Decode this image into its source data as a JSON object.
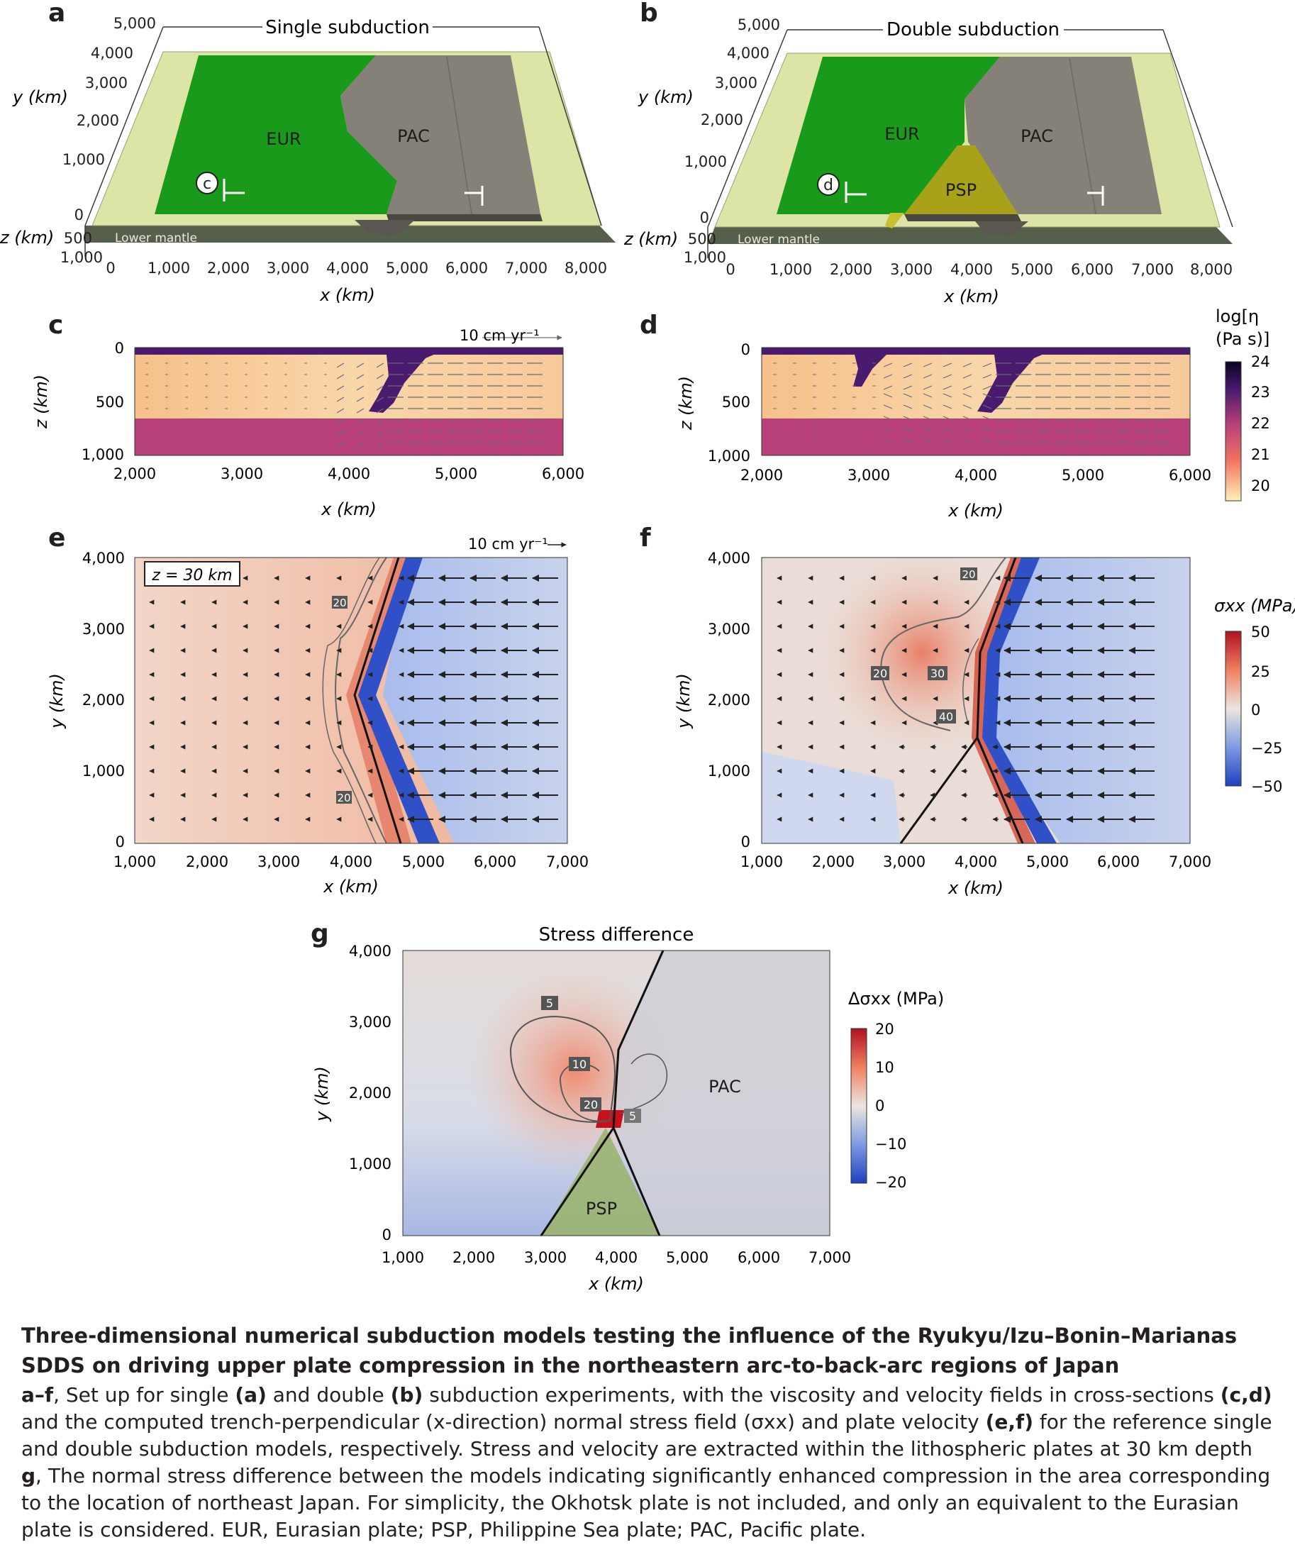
{
  "panel_labels": {
    "a": "a",
    "b": "b",
    "c": "c",
    "d": "d",
    "e": "e",
    "f": "f",
    "g": "g"
  },
  "panel_a": {
    "title": "Single subduction",
    "y_label": "y (km)",
    "z_label": "z (km)",
    "x_label": "x (km)",
    "y_ticks": [
      "5,000",
      "4,000",
      "3,000",
      "2,000",
      "1,000",
      "0"
    ],
    "z_ticks": [
      "500",
      "1,000"
    ],
    "x_ticks": [
      "0",
      "1,000",
      "2,000",
      "3,000",
      "4,000",
      "5,000",
      "6,000",
      "7,000",
      "8,000"
    ],
    "plates": [
      "EUR",
      "PAC"
    ],
    "lower_mantle": "Lower mantle",
    "marker": "c"
  },
  "panel_b": {
    "title": "Double subduction",
    "y_label": "y (km)",
    "z_label": "z (km)",
    "x_label": "x (km)",
    "y_ticks": [
      "5,000",
      "4,000",
      "3,000",
      "2,000",
      "1,000",
      "0"
    ],
    "z_ticks": [
      "500",
      "1,000"
    ],
    "x_ticks": [
      "0",
      "1,000",
      "2,000",
      "3,000",
      "4,000",
      "5,000",
      "6,000",
      "7,000",
      "8,000"
    ],
    "plates": [
      "EUR",
      "PAC",
      "PSP"
    ],
    "lower_mantle": "Lower mantle",
    "marker": "d"
  },
  "panel_c": {
    "y_label": "z (km)",
    "x_label": "x (km)",
    "y_ticks": [
      "0",
      "500",
      "1,000"
    ],
    "x_ticks": [
      "2,000",
      "3,000",
      "4,000",
      "5,000",
      "6,000"
    ],
    "velocity_scale": "10 cm yr⁻¹"
  },
  "panel_d": {
    "y_label": "z (km)",
    "x_label": "x (km)",
    "y_ticks": [
      "0",
      "500",
      "1,000"
    ],
    "x_ticks": [
      "2,000",
      "3,000",
      "4,000",
      "5,000",
      "6,000"
    ]
  },
  "viscosity_colorbar": {
    "label_line1": "log[η",
    "label_line2": "(Pa s)]",
    "ticks": [
      "24",
      "23",
      "22",
      "21",
      "20"
    ]
  },
  "panel_e": {
    "y_label": "y (km)",
    "x_label": "x (km)",
    "y_ticks": [
      "4,000",
      "3,000",
      "2,000",
      "1,000",
      "0"
    ],
    "x_ticks": [
      "1,000",
      "2,000",
      "3,000",
      "4,000",
      "5,000",
      "6,000",
      "7,000"
    ],
    "depth_box": "z = 30 km",
    "velocity_scale": "10 cm yr⁻¹",
    "contour_labels": [
      "20",
      "20"
    ]
  },
  "panel_f": {
    "y_label": "y (km)",
    "x_label": "x (km)",
    "y_ticks": [
      "4,000",
      "3,000",
      "2,000",
      "1,000",
      "0"
    ],
    "x_ticks": [
      "1,000",
      "2,000",
      "3,000",
      "4,000",
      "5,000",
      "6,000",
      "7,000"
    ],
    "contour_labels": [
      "20",
      "20",
      "30",
      "40"
    ]
  },
  "stress_colorbar": {
    "label": "σxx (MPa)",
    "ticks": [
      "50",
      "25",
      "0",
      "−25",
      "−50"
    ]
  },
  "panel_g": {
    "title": "Stress difference",
    "y_label": "y (km)",
    "x_label": "x (km)",
    "y_ticks": [
      "4,000",
      "3,000",
      "2,000",
      "1,000",
      "0"
    ],
    "x_ticks": [
      "1,000",
      "2,000",
      "3,000",
      "4,000",
      "5,000",
      "6,000",
      "7,000"
    ],
    "plates": [
      "PAC",
      "PSP"
    ],
    "contour_labels": [
      "5",
      "10",
      "20",
      "5"
    ]
  },
  "diff_colorbar": {
    "label": "Δσxx (MPa)",
    "ticks": [
      "20",
      "10",
      "0",
      "−10",
      "−20"
    ]
  },
  "caption": {
    "title": "Three-dimensional numerical subduction models testing the influence of the Ryukyu/Izu–Bonin–Marianas SDDS on driving upper plate compression in the northeastern arc-to-back-arc regions of Japan",
    "p1_lead": "a–f",
    "p1_t1": ", Set up for single ",
    "p1_b1": "(a)",
    "p1_t2": " and double ",
    "p1_b2": "(b)",
    "p1_t3": " subduction experiments, with the viscosity and velocity fields in cross-sections ",
    "p1_b3": "(c,d)",
    "p1_t4": " and the computed trench-perpendicular (x-direction) normal stress field (σxx) and plate velocity ",
    "p1_b4": "(e,f)",
    "p1_t5": " for the reference single and double subduction models, respectively. Stress and velocity are extracted within the lithospheric plates at 30 km depth",
    "p2_lead": "g",
    "p2_text": ", The normal stress difference between the models indicating significantly enhanced compression in the area corresponding to the location of northeast Japan. For simplicity, the Okhotsk plate is not included, and only an equivalent to the Eurasian plate is considered. EUR, Eurasian plate; PSP, Philippine Sea plate; PAC, Pacific plate."
  },
  "colors": {
    "eur": "#1a9a1a",
    "pac": "#858078",
    "psp": "#a8a21a",
    "base": "#dfe6a8",
    "slab": "#4a1a6e",
    "lower_mantle_visc": "#b8407a",
    "upper_mantle_visc": "#f6c590",
    "stress_pos": "#c8302a",
    "stress_neg": "#3050c8"
  }
}
